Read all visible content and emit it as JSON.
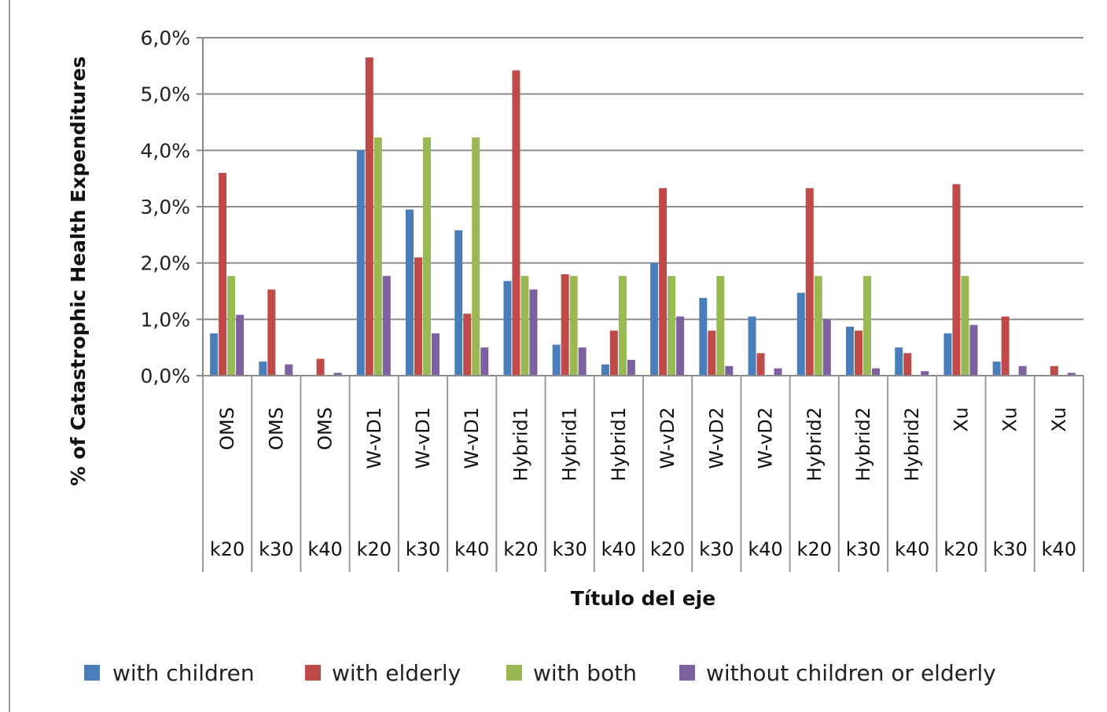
{
  "chart_data": {
    "type": "bar",
    "title": "",
    "xlabel": "Título del eje",
    "ylabel": "% of Catastrophic Health Expenditures",
    "ylim": [
      0,
      6
    ],
    "yticks": [
      "0,0%",
      "1,0%",
      "2,0%",
      "3,0%",
      "4,0%",
      "5,0%",
      "6,0%"
    ],
    "grid": true,
    "legend_position": "bottom",
    "categories": [
      {
        "method": "OMS",
        "group": "k20"
      },
      {
        "method": "OMS",
        "group": "k30"
      },
      {
        "method": "OMS",
        "group": "k40"
      },
      {
        "method": "W-vD1",
        "group": "k20"
      },
      {
        "method": "W-vD1",
        "group": "k30"
      },
      {
        "method": "W-vD1",
        "group": "k40"
      },
      {
        "method": "Hybrid1",
        "group": "k20"
      },
      {
        "method": "Hybrid1",
        "group": "k30"
      },
      {
        "method": "Hybrid1",
        "group": "k40"
      },
      {
        "method": "W-vD2",
        "group": "k20"
      },
      {
        "method": "W-vD2",
        "group": "k30"
      },
      {
        "method": "W-vD2",
        "group": "k40"
      },
      {
        "method": "Hybrid2",
        "group": "k20"
      },
      {
        "method": "Hybrid2",
        "group": "k30"
      },
      {
        "method": "Hybrid2",
        "group": "k40"
      },
      {
        "method": "Xu",
        "group": "k20"
      },
      {
        "method": "Xu",
        "group": "k30"
      },
      {
        "method": "Xu",
        "group": "k40"
      }
    ],
    "series": [
      {
        "name": "with children",
        "color": "#4a7ebb",
        "values": [
          0.75,
          0.25,
          0.0,
          4.0,
          2.95,
          2.58,
          1.68,
          0.55,
          0.2,
          2.0,
          1.38,
          1.05,
          1.47,
          0.87,
          0.5,
          0.75,
          0.25,
          0.0
        ]
      },
      {
        "name": "with elderly",
        "color": "#be4b48",
        "values": [
          3.6,
          1.53,
          0.3,
          5.65,
          2.1,
          1.1,
          5.42,
          1.8,
          0.8,
          3.33,
          0.8,
          0.4,
          3.33,
          0.8,
          0.4,
          3.4,
          1.05,
          0.17
        ]
      },
      {
        "name": "with both",
        "color": "#98b954",
        "values": [
          1.77,
          0.0,
          0.0,
          4.23,
          4.23,
          4.23,
          1.77,
          1.77,
          1.77,
          1.77,
          1.77,
          0.0,
          1.77,
          1.77,
          0.0,
          1.77,
          0.0,
          0.0
        ]
      },
      {
        "name": "without children or elderly",
        "color": "#7d60a0",
        "values": [
          1.08,
          0.2,
          0.05,
          1.77,
          0.75,
          0.5,
          1.53,
          0.5,
          0.28,
          1.05,
          0.17,
          0.13,
          1.0,
          0.13,
          0.08,
          0.9,
          0.17,
          0.05
        ]
      }
    ]
  }
}
